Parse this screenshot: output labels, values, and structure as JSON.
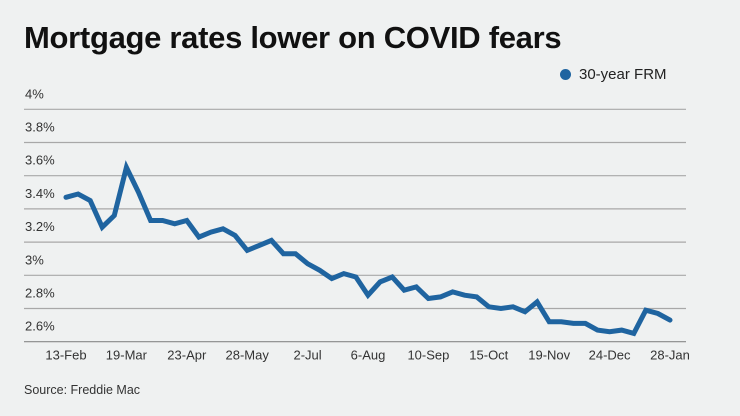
{
  "chart_data": {
    "type": "line",
    "title": "Mortgage rates lower on COVID fears",
    "source": "Source: Freddie Mac",
    "legend_position": "top-right",
    "grid": true,
    "ylim": [
      2.6,
      4.0
    ],
    "yticks": [
      "4%",
      "3.8%",
      "3.6%",
      "3.4%",
      "3.2%",
      "3%",
      "2.8%",
      "2.6%"
    ],
    "ytick_values": [
      4.0,
      3.8,
      3.6,
      3.4,
      3.2,
      3.0,
      2.8,
      2.6
    ],
    "xtick_labels": [
      "13-Feb",
      "19-Mar",
      "23-Apr",
      "28-May",
      "2-Jul",
      "6-Aug",
      "10-Sep",
      "15-Oct",
      "19-Nov",
      "24-Dec",
      "28-Jan"
    ],
    "xtick_every": 5,
    "series": [
      {
        "name": "30-year FRM",
        "color": "#1f64a0",
        "values": [
          3.47,
          3.49,
          3.45,
          3.29,
          3.36,
          3.65,
          3.5,
          3.33,
          3.33,
          3.31,
          3.33,
          3.23,
          3.26,
          3.28,
          3.24,
          3.15,
          3.18,
          3.21,
          3.13,
          3.13,
          3.07,
          3.03,
          2.98,
          3.01,
          2.99,
          2.88,
          2.96,
          2.99,
          2.91,
          2.93,
          2.86,
          2.87,
          2.9,
          2.88,
          2.87,
          2.81,
          2.8,
          2.81,
          2.78,
          2.84,
          2.72,
          2.72,
          2.71,
          2.71,
          2.67,
          2.66,
          2.67,
          2.65,
          2.79,
          2.77,
          2.73
        ]
      }
    ]
  }
}
